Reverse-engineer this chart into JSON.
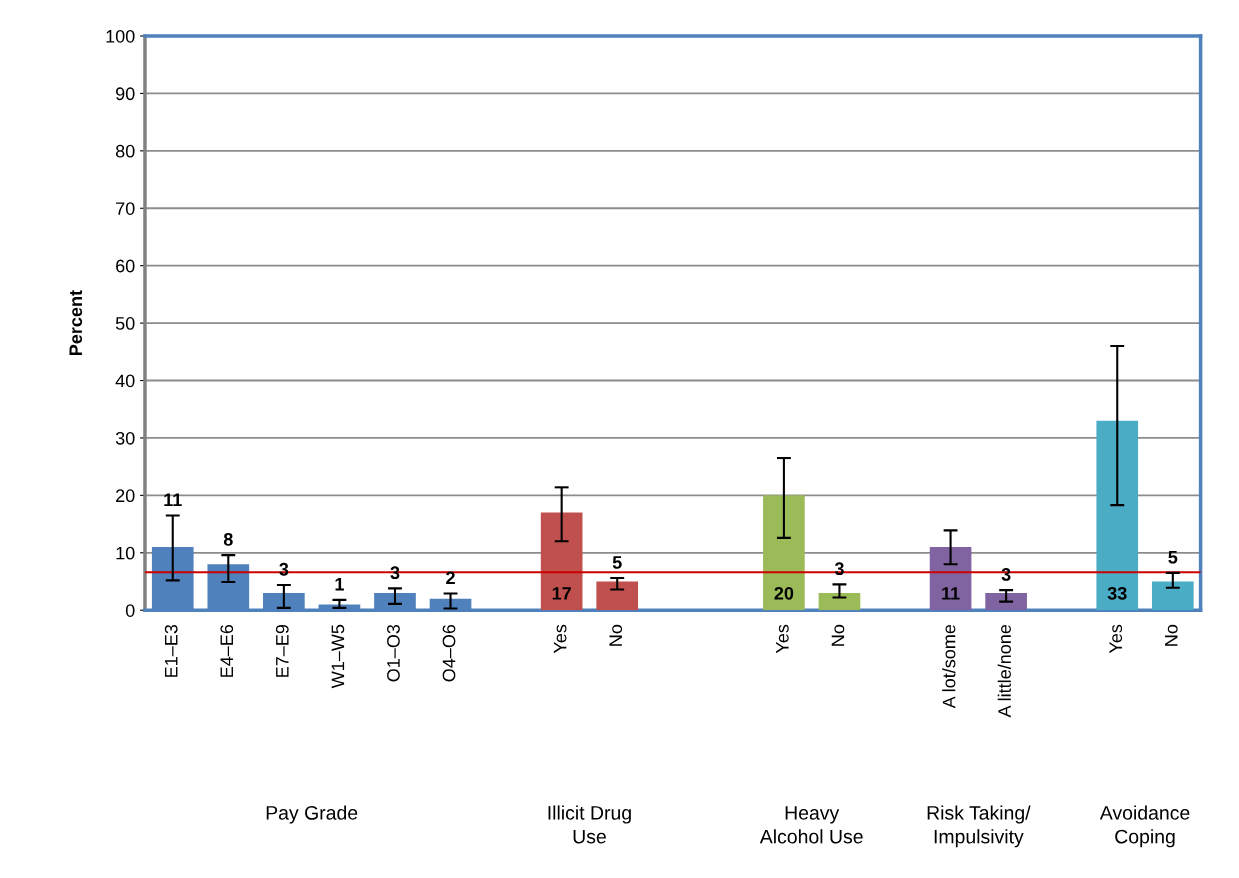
{
  "chart_data": {
    "type": "bar",
    "ylabel": "Percent",
    "categories": [
      "E1–E3",
      "E4–E6",
      "E7–E9",
      "W1–W5",
      "O1–O3",
      "O4–O6",
      null,
      "Yes",
      "No",
      null,
      null,
      "Yes",
      "No",
      null,
      "A lot/some",
      "A little/none",
      null,
      "Yes",
      "No"
    ],
    "values": [
      11,
      8,
      3,
      1,
      3,
      2,
      null,
      17,
      5,
      null,
      null,
      20,
      3,
      null,
      11,
      3,
      null,
      33,
      5
    ],
    "colors": [
      "#4f81bd",
      "#4f81bd",
      "#4f81bd",
      "#4f81bd",
      "#4f81bd",
      "#4f81bd",
      null,
      "#c0504d",
      "#c0504d",
      null,
      null,
      "#9bbb59",
      "#9bbb59",
      null,
      "#8064a2",
      "#8064a2",
      null,
      "#4bacc6",
      "#4bacc6"
    ],
    "errors": [
      [
        5.2,
        16.5
      ],
      [
        4.9,
        9.6
      ],
      [
        0.4,
        4.4
      ],
      [
        0.4,
        1.8
      ],
      [
        1.1,
        3.8
      ],
      [
        0.3,
        2.9
      ],
      null,
      [
        12.0,
        21.4
      ],
      [
        3.6,
        5.6
      ],
      null,
      null,
      [
        12.6,
        26.5
      ],
      [
        2.2,
        4.5
      ],
      null,
      [
        8.0,
        13.9
      ],
      [
        1.5,
        3.5
      ],
      null,
      [
        18.3,
        46.0
      ],
      [
        3.9,
        6.5
      ]
    ],
    "data_labels": true,
    "ylim": [
      0,
      100
    ],
    "yticks": [
      0,
      10,
      20,
      30,
      40,
      50,
      60,
      70,
      80,
      90,
      100
    ],
    "grid": "y",
    "ref_lines": [
      {
        "axis": "y",
        "value": 6.6,
        "color": "#cc0000"
      }
    ],
    "annotations": [
      "Pay Grade",
      "Illicit Drug\nUse",
      "Heavy\nAlcohol Use",
      "Risk Taking/\nImpulsivity",
      "Avoidance\nCoping"
    ]
  }
}
